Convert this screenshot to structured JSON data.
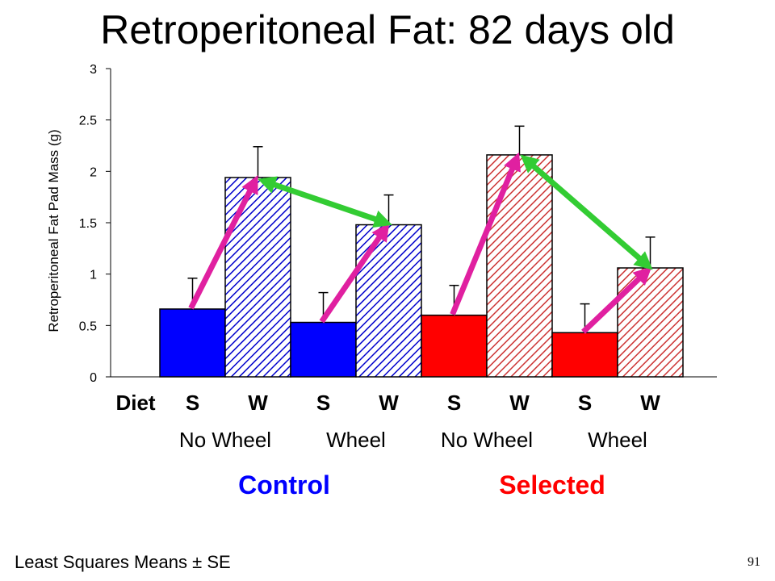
{
  "title": "Retroperitoneal Fat: 82 days old",
  "footer": "Least Squares Means ± SE",
  "slide_number": "91",
  "colors": {
    "control": "#0000ff",
    "selected": "#ff0000",
    "selected_hatch": "#cc3333",
    "arrow_diet": "#e020a0",
    "arrow_wheel": "#33cc33"
  },
  "chart_data": {
    "type": "bar",
    "title": "Retroperitoneal Fat: 82 days old",
    "ylabel": "Retroperitoneal Fat Pad Mass (g)",
    "ylim": [
      0,
      3
    ],
    "yticks": [
      0,
      0.5,
      1,
      1.5,
      2,
      2.5,
      3
    ],
    "ytick_labels": [
      "0",
      "0.5",
      "1",
      "1.5",
      "2",
      "2.5",
      "3"
    ],
    "diet_label": "Diet",
    "bars": [
      {
        "diet": "S",
        "wheel": "No Wheel",
        "group": "Control",
        "value": 0.66,
        "se": 0.3,
        "hatched": false
      },
      {
        "diet": "W",
        "wheel": "No Wheel",
        "group": "Control",
        "value": 1.94,
        "se": 0.3,
        "hatched": true
      },
      {
        "diet": "S",
        "wheel": "Wheel",
        "group": "Control",
        "value": 0.53,
        "se": 0.29,
        "hatched": false
      },
      {
        "diet": "W",
        "wheel": "Wheel",
        "group": "Control",
        "value": 1.48,
        "se": 0.29,
        "hatched": true
      },
      {
        "diet": "S",
        "wheel": "No Wheel",
        "group": "Selected",
        "value": 0.6,
        "se": 0.29,
        "hatched": false
      },
      {
        "diet": "W",
        "wheel": "No Wheel",
        "group": "Selected",
        "value": 2.16,
        "se": 0.28,
        "hatched": true
      },
      {
        "diet": "S",
        "wheel": "Wheel",
        "group": "Selected",
        "value": 0.43,
        "se": 0.28,
        "hatched": false
      },
      {
        "diet": "W",
        "wheel": "Wheel",
        "group": "Selected",
        "value": 1.06,
        "se": 0.3,
        "hatched": true
      }
    ],
    "condition_labels": [
      "No Wheel",
      "Wheel",
      "No Wheel",
      "Wheel"
    ],
    "groups": [
      "Control",
      "Selected"
    ],
    "grid": false,
    "annotations": [
      {
        "type": "diet_effect_arrow",
        "from_bar": 0,
        "to_bar": 1,
        "color": "magenta"
      },
      {
        "type": "diet_effect_arrow",
        "from_bar": 2,
        "to_bar": 3,
        "color": "magenta"
      },
      {
        "type": "diet_effect_arrow",
        "from_bar": 4,
        "to_bar": 5,
        "color": "magenta"
      },
      {
        "type": "diet_effect_arrow",
        "from_bar": 6,
        "to_bar": 7,
        "color": "magenta"
      },
      {
        "type": "wheel_effect_double_arrow",
        "from_bar": 1,
        "to_bar": 3,
        "color": "green"
      },
      {
        "type": "wheel_effect_double_arrow",
        "from_bar": 5,
        "to_bar": 7,
        "color": "green"
      }
    ]
  }
}
